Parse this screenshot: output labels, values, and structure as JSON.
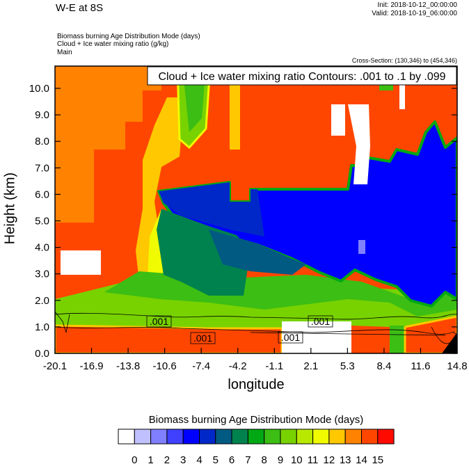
{
  "header": {
    "title": "W-E at 8S",
    "init": "Init: 2018-10-12_00:00:00",
    "valid": "Valid: 2018-10-19_06:00:00",
    "subtitles": [
      "Biomass burning Age Distribution Mode   (days)",
      "Cloud + Ice water mixing ratio   (g/kg)",
      "Main"
    ],
    "cross_section": "Cross-Section: (130,346) to (454,346)"
  },
  "chart_data": {
    "type": "heatmap",
    "title": "W-E at 8S",
    "xlabel": "longitude",
    "ylabel": "Height (km)",
    "xlim": [
      -20.1,
      14.8
    ],
    "ylim": [
      0,
      10.85
    ],
    "xticks": [
      "-20.1",
      "-16.9",
      "-13.8",
      "-10.6",
      "-7.4",
      "-4.2",
      "-1.1",
      "2.1",
      "5.3",
      "8.4",
      "11.6",
      "14.8"
    ],
    "yticks": [
      "0.0",
      "1.0",
      "2.0",
      "3.0",
      "4.0",
      "5.0",
      "6.0",
      "7.0",
      "8.0",
      "9.0",
      "10.0"
    ],
    "contour_info": "Cloud + Ice water mixing ratio Contours: .001 to .1 by .099",
    "contour_levels": [
      0.001,
      0.1
    ],
    "contour_labels": [
      ".001",
      ".001",
      ".001",
      ".001"
    ],
    "colorbar": {
      "title": "Biomass burning Age Distribution Mode  (days)",
      "labels": [
        "0",
        "1",
        "2",
        "3",
        "4",
        "5",
        "6",
        "7",
        "8",
        "9",
        "10",
        "11",
        "12",
        "13",
        "14",
        "15"
      ],
      "colors": [
        "#FFFFFF",
        "#C0C0FF",
        "#8080FF",
        "#4040FF",
        "#0000FF",
        "#0028C8",
        "#005A82",
        "#00824E",
        "#00A814",
        "#3CBE14",
        "#78D200",
        "#B8E800",
        "#F0FA00",
        "#FFC800",
        "#FF8200",
        "#FF4600",
        "#FF0A00"
      ]
    }
  }
}
